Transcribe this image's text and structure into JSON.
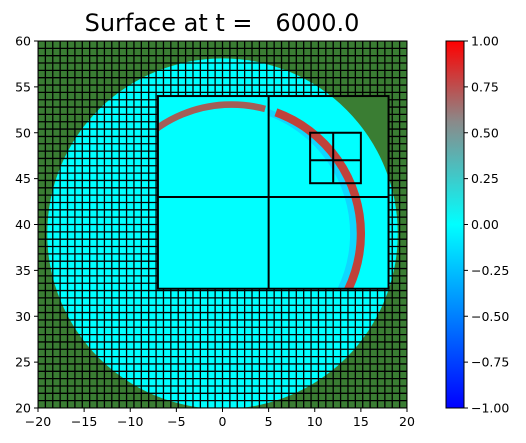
{
  "chart_data": {
    "type": "heatmap",
    "title": "Surface at t =   6000.0",
    "xlabel": "",
    "ylabel": "",
    "xlim": [
      -20,
      20
    ],
    "ylim": [
      20,
      60
    ],
    "x_ticks": [
      "−20",
      "−15",
      "−10",
      "−5",
      "0",
      "5",
      "10",
      "15",
      "20"
    ],
    "y_ticks": [
      "20",
      "25",
      "30",
      "35",
      "40",
      "45",
      "50",
      "55",
      "60"
    ],
    "grid": false,
    "colorbar": {
      "range": [
        -1.0,
        1.0
      ],
      "ticks": [
        "1.00",
        "0.75",
        "0.50",
        "0.25",
        "0.00",
        "−0.25",
        "−0.50",
        "−0.75",
        "−1.00"
      ],
      "colormap": [
        "#0000ff",
        "#00ffff",
        "#ff0000"
      ]
    },
    "land_color": "#3a7d33",
    "water_color": "#00ffff",
    "wave_color": "#c0423a",
    "domain_center": [
      0,
      39
    ],
    "domain_radius": 19,
    "fine_patch": {
      "x": [
        -7,
        18
      ],
      "y": [
        33,
        54
      ]
    },
    "patch_lines": [
      {
        "x": [
          5,
          5
        ],
        "y": [
          33,
          54
        ]
      },
      {
        "x": [
          -7,
          18
        ],
        "y": [
          43,
          43
        ]
      },
      {
        "x": [
          9.5,
          15
        ],
        "y": [
          44.5,
          50
        ]
      },
      {
        "x": [
          12,
          12
        ],
        "y": [
          44.5,
          50
        ]
      },
      {
        "x": [
          9.5,
          15
        ],
        "y": [
          47,
          47
        ]
      }
    ],
    "wave_front": {
      "center": [
        1,
        39
      ],
      "radius": 14,
      "angle_range": [
        -70,
        70
      ],
      "width": 0.9
    }
  }
}
